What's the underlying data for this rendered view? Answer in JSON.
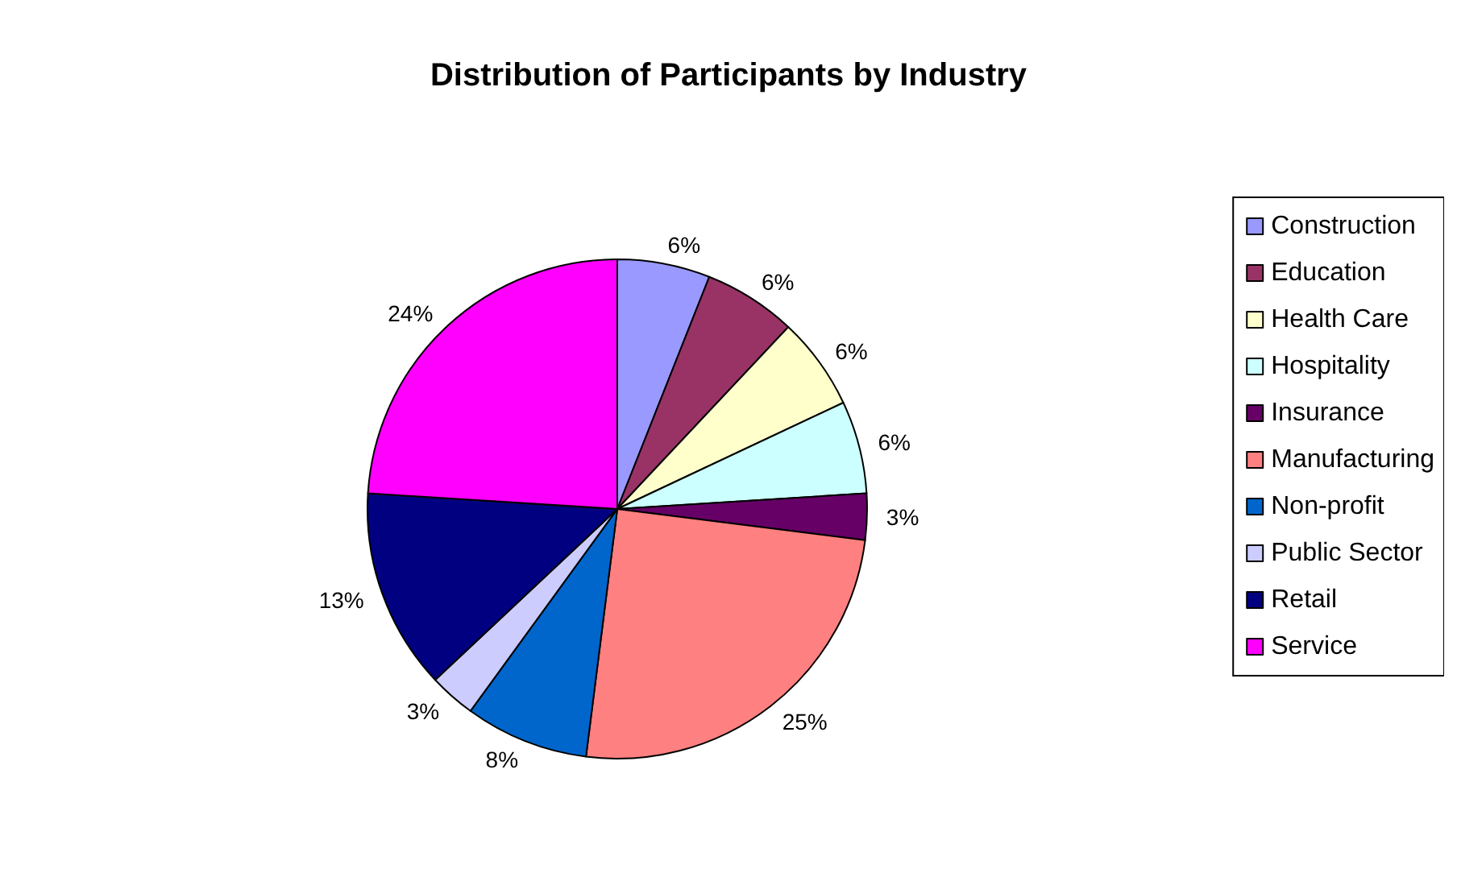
{
  "chart_data": {
    "type": "pie",
    "title": "Distribution of Participants by Industry",
    "categories": [
      "Construction",
      "Education",
      "Health Care",
      "Hospitality",
      "Insurance",
      "Manufacturing",
      "Non-profit",
      "Public Sector",
      "Retail",
      "Service"
    ],
    "values": [
      6,
      6,
      6,
      6,
      3,
      25,
      8,
      3,
      13,
      24
    ],
    "colors": [
      "#9999ff",
      "#993366",
      "#ffffcc",
      "#ccffff",
      "#660066",
      "#ff8080",
      "#0066cc",
      "#ccccff",
      "#000080",
      "#ff00ff"
    ],
    "value_labels": [
      "6%",
      "6%",
      "6%",
      "6%",
      "3%",
      "25%",
      "8%",
      "3%",
      "13%",
      "24%"
    ],
    "legend": "right"
  }
}
